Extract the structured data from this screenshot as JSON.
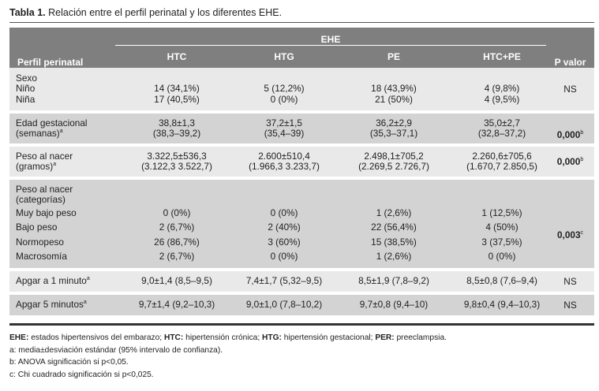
{
  "caption": {
    "label": "Tabla 1.",
    "text": "Relación entre el perfil perinatal y los diferentes EHE."
  },
  "header": {
    "row_label": "Perfil perinatal",
    "group": "EHE",
    "cols": [
      "HTC",
      "HTG",
      "PE",
      "HTC+PE"
    ],
    "pvalue": "P valor"
  },
  "rows": {
    "sexo": {
      "title": "Sexo",
      "sub": [
        {
          "label": "Niño",
          "vals": [
            "14 (34,1%)",
            "5 (12,2%)",
            "18 (43,9%)",
            "4 (9,8%)"
          ]
        },
        {
          "label": "Niña",
          "vals": [
            "17 (40,5%)",
            "0 (0%)",
            "21 (50%)",
            "4 (9,5%)"
          ]
        }
      ],
      "p": "NS"
    },
    "edad": {
      "label1": "Edad gestacional",
      "label2": "(semanas)",
      "label_sup": "a",
      "mean": [
        "38,8±1,3",
        "37,2±1,5",
        "36,2±2,9",
        "35,0±2,7"
      ],
      "ci": [
        "(38,3–39,2)",
        "(35,4–39)",
        "(35,3–37,1)",
        "(32,8–37,2)"
      ],
      "p": "0,000",
      "p_sup": "b"
    },
    "peso": {
      "label1": "Peso al nacer",
      "label2": "(gramos)",
      "label_sup": "a",
      "mean": [
        "3.322,5±536,3",
        "2.600±510,4",
        "2.498,1±705,2",
        "2.260,6±705,6"
      ],
      "ci": [
        "(3.122,3  3.522,7)",
        "(1.966,3  3.233,7)",
        "(2.269,5  2.726,7)",
        "(1.670,7  2.850,5)"
      ],
      "p": "0,000",
      "p_sup": "b"
    },
    "pesocat": {
      "title1": "Peso al nacer",
      "title2": "(categorías)",
      "sub": [
        {
          "label": "Muy bajo peso",
          "vals": [
            "0 (0%)",
            "0 (0%)",
            "1 (2,6%)",
            "1 (12,5%)"
          ]
        },
        {
          "label": "Bajo peso",
          "vals": [
            "2 (6,7%)",
            "2 (40%)",
            "22 (56,4%)",
            "4 (50%)"
          ]
        },
        {
          "label": "Normopeso",
          "vals": [
            "26 (86,7%)",
            "3 (60%)",
            "15 (38,5%)",
            "3 (37,5%)"
          ]
        },
        {
          "label": "Macrosomía",
          "vals": [
            "2 (6,7%)",
            "0 (0%)",
            "1 (2,6%)",
            "0 (0%)"
          ]
        }
      ],
      "p": "0,003",
      "p_sup": "c"
    },
    "apgar1": {
      "label": "Apgar a 1 minuto",
      "label_sup": "a",
      "vals": [
        "9,0±1,4 (8,5–9,5)",
        "7,4±1,7 (5,32–9,5)",
        "8,5±1,9 (7,8–9,2)",
        "8,5±0,8 (7,6–9,4)"
      ],
      "p": "NS"
    },
    "apgar5": {
      "label": "Apgar 5 minutos",
      "label_sup": "a",
      "vals": [
        "9,7±1,4 (9,2–10,3)",
        "9,0±1,0 (7,8–10,2)",
        "9,7±0,8 (9,4–10)",
        "9,8±0,4 (9,4–10,3)"
      ],
      "p": "NS"
    }
  },
  "notes": {
    "abbr": [
      {
        "term": "EHE:",
        "def": "estados hipertensivos del embarazo;"
      },
      {
        "term": "HTC:",
        "def": "hipertensión crónica;"
      },
      {
        "term": "HTG:",
        "def": "hipertensión gestacional;"
      },
      {
        "term": "PER:",
        "def": "preeclampsia."
      }
    ],
    "a": "a: media±desviación estándar (95% intervalo de confianza).",
    "b": "b: ANOVA significación si p<0,05.",
    "c": "c: Chi cuadrado significación si p<0,025."
  }
}
